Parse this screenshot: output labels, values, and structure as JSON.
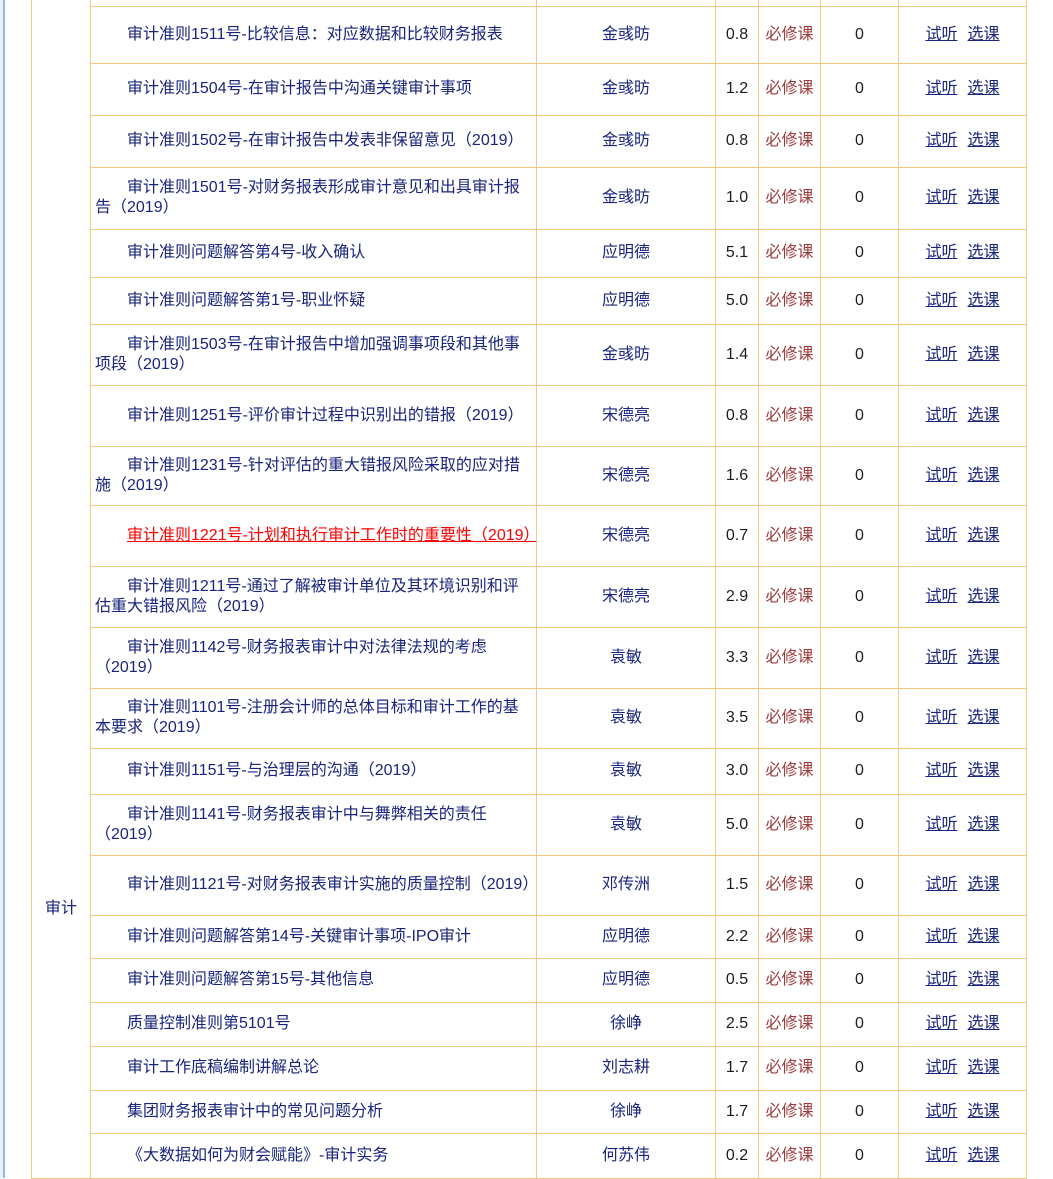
{
  "category": "审计",
  "link_labels": {
    "trial": "试听",
    "select": "选课"
  },
  "colors": {
    "table_border": "#f5c87c",
    "text_navy": "#18247d",
    "required_red": "#9c3a3a",
    "highlight_red": "#ff0000",
    "number_dark": "#1d1d1d",
    "page_edge_blue": "#90bae5"
  },
  "rows": [
    {
      "name": "审计准则1511号-比较信息：对应数据和比较财务报表",
      "instructor": "金彧昉",
      "credit": "0.8",
      "type": "必修课",
      "count": "0",
      "highlighted": false
    },
    {
      "name": "审计准则1504号-在审计报告中沟通关键审计事项",
      "instructor": "金彧昉",
      "credit": "1.2",
      "type": "必修课",
      "count": "0",
      "highlighted": false
    },
    {
      "name": "审计准则1502号-在审计报告中发表非保留意见（2019）",
      "instructor": "金彧昉",
      "credit": "0.8",
      "type": "必修课",
      "count": "0",
      "highlighted": false
    },
    {
      "name": "审计准则1501号-对财务报表形成审计意见和出具审计报告（2019）",
      "instructor": "金彧昉",
      "credit": "1.0",
      "type": "必修课",
      "count": "0",
      "highlighted": false
    },
    {
      "name": "审计准则问题解答第4号-收入确认",
      "instructor": "应明德",
      "credit": "5.1",
      "type": "必修课",
      "count": "0",
      "highlighted": false
    },
    {
      "name": "审计准则问题解答第1号-职业怀疑",
      "instructor": "应明德",
      "credit": "5.0",
      "type": "必修课",
      "count": "0",
      "highlighted": false
    },
    {
      "name": "审计准则1503号-在审计报告中增加强调事项段和其他事项段（2019）",
      "instructor": "金彧昉",
      "credit": "1.4",
      "type": "必修课",
      "count": "0",
      "highlighted": false
    },
    {
      "name": "审计准则1251号-评价审计过程中识别出的错报（2019）",
      "instructor": "宋德亮",
      "credit": "0.8",
      "type": "必修课",
      "count": "0",
      "highlighted": false
    },
    {
      "name": "审计准则1231号-针对评估的重大错报风险采取的应对措施（2019）",
      "instructor": "宋德亮",
      "credit": "1.6",
      "type": "必修课",
      "count": "0",
      "highlighted": false
    },
    {
      "name": "审计准则1221号-计划和执行审计工作时的重要性（2019）",
      "instructor": "宋德亮",
      "credit": "0.7",
      "type": "必修课",
      "count": "0",
      "highlighted": true
    },
    {
      "name": "审计准则1211号-通过了解被审计单位及其环境识别和评估重大错报风险（2019）",
      "instructor": "宋德亮",
      "credit": "2.9",
      "type": "必修课",
      "count": "0",
      "highlighted": false
    },
    {
      "name": "审计准则1142号-财务报表审计中对法律法规的考虑（2019）",
      "instructor": "袁敏",
      "credit": "3.3",
      "type": "必修课",
      "count": "0",
      "highlighted": false
    },
    {
      "name": "审计准则1101号-注册会计师的总体目标和审计工作的基本要求（2019）",
      "instructor": "袁敏",
      "credit": "3.5",
      "type": "必修课",
      "count": "0",
      "highlighted": false
    },
    {
      "name": "审计准则1151号-与治理层的沟通（2019）",
      "instructor": "袁敏",
      "credit": "3.0",
      "type": "必修课",
      "count": "0",
      "highlighted": false
    },
    {
      "name": "审计准则1141号-财务报表审计中与舞弊相关的责任（2019）",
      "instructor": "袁敏",
      "credit": "5.0",
      "type": "必修课",
      "count": "0",
      "highlighted": false
    },
    {
      "name": "审计准则1121号-对财务报表审计实施的质量控制（2019）",
      "instructor": "邓传洲",
      "credit": "1.5",
      "type": "必修课",
      "count": "0",
      "highlighted": false
    },
    {
      "name": "审计准则问题解答第14号-关键审计事项-IPO审计",
      "instructor": "应明德",
      "credit": "2.2",
      "type": "必修课",
      "count": "0",
      "highlighted": false
    },
    {
      "name": "审计准则问题解答第15号-其他信息",
      "instructor": "应明德",
      "credit": "0.5",
      "type": "必修课",
      "count": "0",
      "highlighted": false
    },
    {
      "name": "质量控制准则第5101号",
      "instructor": "徐峥",
      "credit": "2.5",
      "type": "必修课",
      "count": "0",
      "highlighted": false
    },
    {
      "name": "审计工作底稿编制讲解总论",
      "instructor": "刘志耕",
      "credit": "1.7",
      "type": "必修课",
      "count": "0",
      "highlighted": false
    },
    {
      "name": "集团财务报表审计中的常见问题分析",
      "instructor": "徐峥",
      "credit": "1.7",
      "type": "必修课",
      "count": "0",
      "highlighted": false
    },
    {
      "name": "《大数据如何为财会赋能》-审计实务",
      "instructor": "何苏伟",
      "credit": "0.2",
      "type": "必修课",
      "count": "0",
      "highlighted": false
    }
  ]
}
